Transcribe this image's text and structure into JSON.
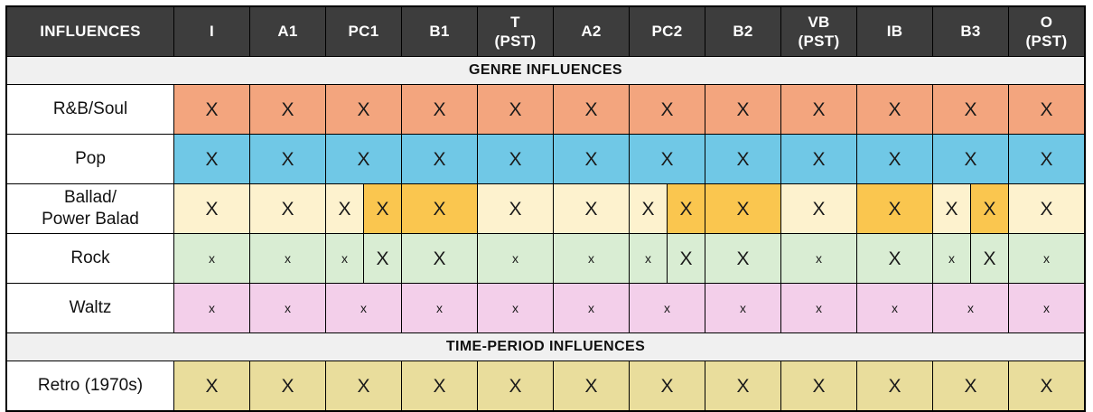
{
  "colors": {
    "header_bg": "#3D3D3D",
    "header_text": "#FFFFFF",
    "section_bg": "#F0F0F0",
    "border": "#000000",
    "salmon": "#F3A57E",
    "blue": "#70C8E6",
    "cream": "#FDF2CE",
    "amber": "#FAC64F",
    "green": "#D9EDD3",
    "pink": "#F3CFEA",
    "khaki": "#E9DD9C"
  },
  "header": {
    "label": "INFLUENCES",
    "columns": [
      "I",
      "A1",
      "PC1",
      "B1",
      "T\n(PST)",
      "A2",
      "PC2",
      "B2",
      "VB\n(PST)",
      "IB",
      "B3",
      "O\n(PST)"
    ]
  },
  "sections": [
    {
      "title": "GENRE INFLUENCES",
      "rows": [
        {
          "label": "R&B/Soul",
          "bg": "salmon",
          "cells": [
            {
              "mark": "X",
              "size": "big"
            },
            {
              "mark": "X",
              "size": "big"
            },
            {
              "mark": "X",
              "size": "big"
            },
            {
              "mark": "X",
              "size": "big"
            },
            {
              "mark": "X",
              "size": "big"
            },
            {
              "mark": "X",
              "size": "big"
            },
            {
              "mark": "X",
              "size": "big"
            },
            {
              "mark": "X",
              "size": "big"
            },
            {
              "mark": "X",
              "size": "big"
            },
            {
              "mark": "X",
              "size": "big"
            },
            {
              "mark": "X",
              "size": "big"
            },
            {
              "mark": "X",
              "size": "big"
            }
          ]
        },
        {
          "label": "Pop",
          "bg": "blue",
          "cells": [
            {
              "mark": "X",
              "size": "big"
            },
            {
              "mark": "X",
              "size": "big"
            },
            {
              "mark": "X",
              "size": "big"
            },
            {
              "mark": "X",
              "size": "big"
            },
            {
              "mark": "X",
              "size": "big"
            },
            {
              "mark": "X",
              "size": "big"
            },
            {
              "mark": "X",
              "size": "big"
            },
            {
              "mark": "X",
              "size": "big"
            },
            {
              "mark": "X",
              "size": "big"
            },
            {
              "mark": "X",
              "size": "big"
            },
            {
              "mark": "X",
              "size": "big"
            },
            {
              "mark": "X",
              "size": "big"
            }
          ]
        },
        {
          "label": "Ballad/\nPower Balad",
          "bg": "cream",
          "cells": [
            {
              "mark": "X",
              "size": "big"
            },
            {
              "mark": "X",
              "size": "big"
            },
            {
              "split": [
                {
                  "mark": "X",
                  "size": "big"
                },
                {
                  "mark": "X",
                  "size": "big",
                  "bg": "amber"
                }
              ]
            },
            {
              "mark": "X",
              "size": "big",
              "bg": "amber"
            },
            {
              "mark": "X",
              "size": "big"
            },
            {
              "mark": "X",
              "size": "big"
            },
            {
              "split": [
                {
                  "mark": "X",
                  "size": "big"
                },
                {
                  "mark": "X",
                  "size": "big",
                  "bg": "amber"
                }
              ]
            },
            {
              "mark": "X",
              "size": "big",
              "bg": "amber"
            },
            {
              "mark": "X",
              "size": "big"
            },
            {
              "mark": "X",
              "size": "big",
              "bg": "amber"
            },
            {
              "split": [
                {
                  "mark": "X",
                  "size": "big"
                },
                {
                  "mark": "X",
                  "size": "big",
                  "bg": "amber"
                }
              ]
            },
            {
              "mark": "X",
              "size": "big"
            }
          ]
        },
        {
          "label": "Rock",
          "bg": "green",
          "cells": [
            {
              "mark": "x",
              "size": "small"
            },
            {
              "mark": "x",
              "size": "small"
            },
            {
              "split": [
                {
                  "mark": "x",
                  "size": "small"
                },
                {
                  "mark": "X",
                  "size": "big"
                }
              ]
            },
            {
              "mark": "X",
              "size": "big"
            },
            {
              "mark": "x",
              "size": "small"
            },
            {
              "mark": "x",
              "size": "small"
            },
            {
              "split": [
                {
                  "mark": "x",
                  "size": "small"
                },
                {
                  "mark": "X",
                  "size": "big"
                }
              ]
            },
            {
              "mark": "X",
              "size": "big"
            },
            {
              "mark": "x",
              "size": "small"
            },
            {
              "mark": "X",
              "size": "big"
            },
            {
              "split": [
                {
                  "mark": "x",
                  "size": "small"
                },
                {
                  "mark": "X",
                  "size": "big"
                }
              ]
            },
            {
              "mark": "x",
              "size": "small"
            }
          ]
        },
        {
          "label": "Waltz",
          "bg": "pink",
          "cells": [
            {
              "mark": "x",
              "size": "small"
            },
            {
              "mark": "x",
              "size": "small"
            },
            {
              "mark": "x",
              "size": "small"
            },
            {
              "mark": "x",
              "size": "small"
            },
            {
              "mark": "x",
              "size": "small"
            },
            {
              "mark": "x",
              "size": "small"
            },
            {
              "mark": "x",
              "size": "small"
            },
            {
              "mark": "x",
              "size": "small"
            },
            {
              "mark": "x",
              "size": "small"
            },
            {
              "mark": "x",
              "size": "small"
            },
            {
              "mark": "x",
              "size": "small"
            },
            {
              "mark": "x",
              "size": "small"
            }
          ]
        }
      ]
    },
    {
      "title": "TIME-PERIOD INFLUENCES",
      "rows": [
        {
          "label": "Retro (1970s)",
          "bg": "khaki",
          "cells": [
            {
              "mark": "X",
              "size": "big"
            },
            {
              "mark": "X",
              "size": "big"
            },
            {
              "mark": "X",
              "size": "big"
            },
            {
              "mark": "X",
              "size": "big"
            },
            {
              "mark": "X",
              "size": "big"
            },
            {
              "mark": "X",
              "size": "big"
            },
            {
              "mark": "X",
              "size": "big"
            },
            {
              "mark": "X",
              "size": "big"
            },
            {
              "mark": "X",
              "size": "big"
            },
            {
              "mark": "X",
              "size": "big"
            },
            {
              "mark": "X",
              "size": "big"
            },
            {
              "mark": "X",
              "size": "big"
            }
          ]
        }
      ]
    }
  ]
}
